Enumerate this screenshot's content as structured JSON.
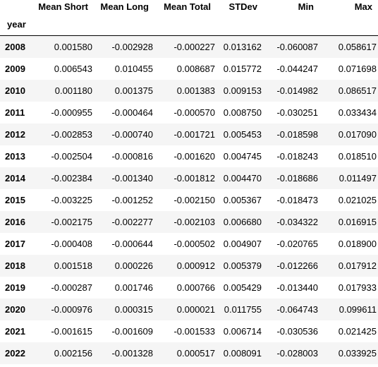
{
  "table": {
    "index_name": "year",
    "columns": [
      "Mean Short",
      "Mean Long",
      "Mean Total",
      "STDev",
      "Min",
      "Max"
    ],
    "rows": [
      {
        "year": "2008",
        "values": [
          "0.001580",
          "-0.002928",
          "-0.000227",
          "0.013162",
          "-0.060087",
          "0.058617"
        ]
      },
      {
        "year": "2009",
        "values": [
          "0.006543",
          "0.010455",
          "0.008687",
          "0.015772",
          "-0.044247",
          "0.071698"
        ]
      },
      {
        "year": "2010",
        "values": [
          "0.001180",
          "0.001375",
          "0.001383",
          "0.009153",
          "-0.014982",
          "0.086517"
        ]
      },
      {
        "year": "2011",
        "values": [
          "-0.000955",
          "-0.000464",
          "-0.000570",
          "0.008750",
          "-0.030251",
          "0.033434"
        ]
      },
      {
        "year": "2012",
        "values": [
          "-0.002853",
          "-0.000740",
          "-0.001721",
          "0.005453",
          "-0.018598",
          "0.017090"
        ]
      },
      {
        "year": "2013",
        "values": [
          "-0.002504",
          "-0.000816",
          "-0.001620",
          "0.004745",
          "-0.018243",
          "0.018510"
        ]
      },
      {
        "year": "2014",
        "values": [
          "-0.002384",
          "-0.001340",
          "-0.001812",
          "0.004470",
          "-0.018686",
          "0.011497"
        ]
      },
      {
        "year": "2015",
        "values": [
          "-0.003225",
          "-0.001252",
          "-0.002150",
          "0.005367",
          "-0.018473",
          "0.021025"
        ]
      },
      {
        "year": "2016",
        "values": [
          "-0.002175",
          "-0.002277",
          "-0.002103",
          "0.006680",
          "-0.034322",
          "0.016915"
        ]
      },
      {
        "year": "2017",
        "values": [
          "-0.000408",
          "-0.000644",
          "-0.000502",
          "0.004907",
          "-0.020765",
          "0.018900"
        ]
      },
      {
        "year": "2018",
        "values": [
          "0.001518",
          "0.000226",
          "0.000912",
          "0.005379",
          "-0.012266",
          "0.017912"
        ]
      },
      {
        "year": "2019",
        "values": [
          "-0.000287",
          "0.001746",
          "0.000766",
          "0.005429",
          "-0.013440",
          "0.017933"
        ]
      },
      {
        "year": "2020",
        "values": [
          "-0.000976",
          "0.000315",
          "0.000021",
          "0.011755",
          "-0.064743",
          "0.099611"
        ]
      },
      {
        "year": "2021",
        "values": [
          "-0.001615",
          "-0.001609",
          "-0.001533",
          "0.006714",
          "-0.030536",
          "0.021425"
        ]
      },
      {
        "year": "2022",
        "values": [
          "0.002156",
          "-0.001328",
          "0.000517",
          "0.008091",
          "-0.028003",
          "0.033925"
        ]
      }
    ]
  }
}
